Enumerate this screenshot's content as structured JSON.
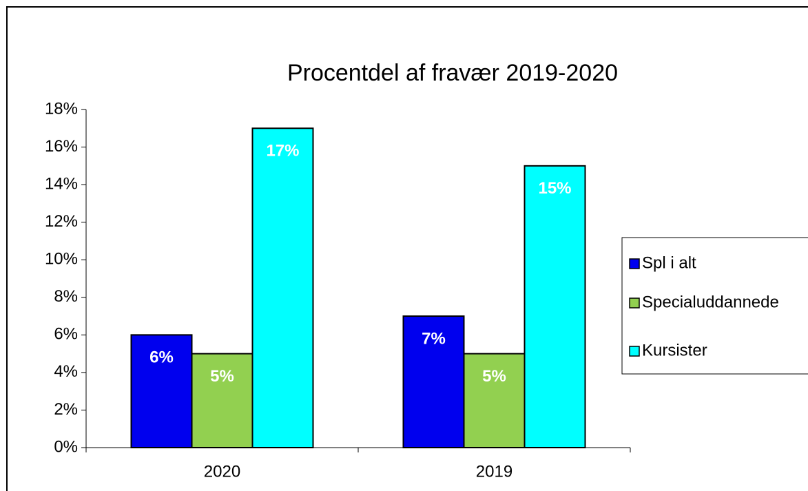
{
  "chart_data": {
    "type": "bar",
    "title": "Procentdel af fravær 2019-2020",
    "categories": [
      "2020",
      "2019"
    ],
    "series": [
      {
        "name": "Spl i alt",
        "color": "#0000ee",
        "values": [
          6,
          7
        ],
        "value_labels": [
          "6%",
          "7%"
        ]
      },
      {
        "name": "Specialuddannede",
        "color": "#92d050",
        "values": [
          5,
          5
        ],
        "value_labels": [
          "5%",
          "5%"
        ]
      },
      {
        "name": "Kursister",
        "color": "#00ffff",
        "values": [
          17,
          15
        ],
        "value_labels": [
          "17%",
          "15%"
        ]
      }
    ],
    "ylim": [
      0,
      18
    ],
    "yticks": [
      {
        "value": 0,
        "label": "0%"
      },
      {
        "value": 2,
        "label": "2%"
      },
      {
        "value": 4,
        "label": "4%"
      },
      {
        "value": 6,
        "label": "6%"
      },
      {
        "value": 8,
        "label": "8%"
      },
      {
        "value": 10,
        "label": "10%"
      },
      {
        "value": 12,
        "label": "12%"
      },
      {
        "value": 14,
        "label": "14%"
      },
      {
        "value": 16,
        "label": "16%"
      },
      {
        "value": 18,
        "label": "18%"
      }
    ],
    "grid": false,
    "legend": "right"
  }
}
